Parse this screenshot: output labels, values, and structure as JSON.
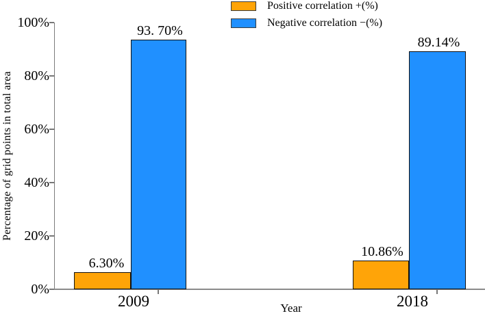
{
  "chart_data": {
    "type": "bar",
    "title": "",
    "xlabel": "Year",
    "ylabel": "Percentage of grid points in total area",
    "categories": [
      "2009",
      "2018"
    ],
    "series": [
      {
        "name": "Positive correlation +(%)",
        "color": "#FFA408",
        "values": [
          6.3,
          10.86
        ],
        "labels": [
          "6.30%",
          "10.86%"
        ]
      },
      {
        "name": "Negative correlation −(%)",
        "color": "#2090FF",
        "values": [
          93.7,
          89.14
        ],
        "labels": [
          "93. 70%",
          "89.14%"
        ]
      }
    ],
    "ylim": [
      0,
      100
    ],
    "yticks": [
      0,
      20,
      40,
      60,
      80,
      100
    ],
    "ytick_labels": [
      "0%",
      "20%",
      "40%",
      "60%",
      "80%",
      "100%"
    ],
    "grid": false,
    "legend_position": "top-center",
    "bar_border_color": "#101010",
    "axis_color": "#8a8a8a"
  }
}
